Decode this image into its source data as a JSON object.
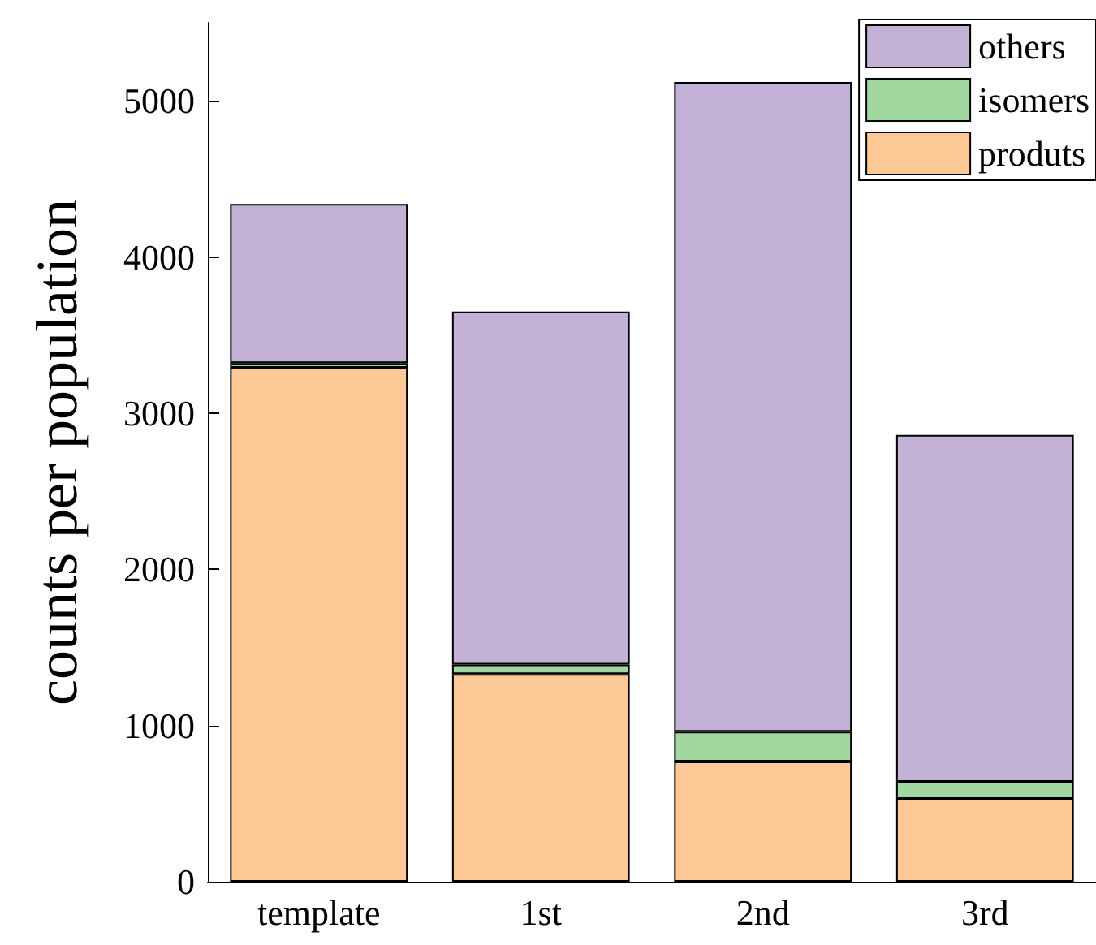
{
  "chart_data": {
    "type": "bar",
    "stacked": true,
    "ylabel": "counts per population",
    "categories": [
      "template",
      "1st",
      "2nd",
      "3rd"
    ],
    "series": [
      {
        "name": "produts",
        "color": "#fcc896",
        "values": [
          3290,
          1330,
          770,
          530
        ]
      },
      {
        "name": "isomers",
        "color": "#a0d8a0",
        "values": [
          30,
          60,
          190,
          110
        ]
      },
      {
        "name": "others",
        "color": "#c3b1d6",
        "values": [
          1020,
          2260,
          4160,
          2220
        ]
      }
    ],
    "ylim": [
      0,
      5500
    ],
    "yticks": [
      0,
      1000,
      2000,
      3000,
      4000,
      5000
    ],
    "grid": false,
    "legend": "top right"
  }
}
